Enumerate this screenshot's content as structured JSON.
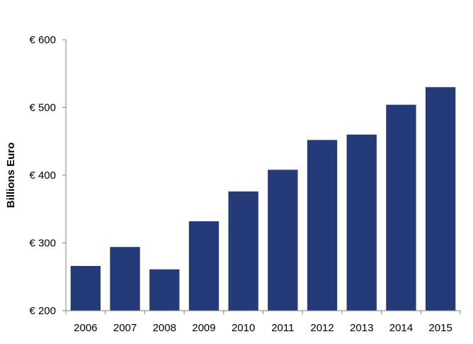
{
  "chart_data": {
    "type": "bar",
    "title": "",
    "xlabel": "",
    "ylabel": "Billions Euro",
    "categories": [
      "2006",
      "2007",
      "2008",
      "2009",
      "2010",
      "2011",
      "2012",
      "2013",
      "2014",
      "2015"
    ],
    "values": [
      266,
      294,
      261,
      332,
      376,
      408,
      452,
      460,
      504,
      530
    ],
    "ylim": [
      200,
      600
    ],
    "yticks": [
      200,
      300,
      400,
      500,
      600
    ],
    "ytick_labels": [
      "€ 200",
      "€ 300",
      "€ 400",
      "€ 500",
      "€ 600"
    ],
    "bar_color": "#253a78",
    "grid": false,
    "legend": "none"
  }
}
